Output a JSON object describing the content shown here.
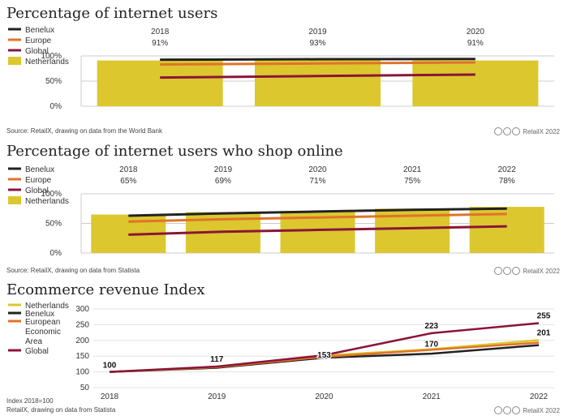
{
  "charts": [
    {
      "title": "Percentage of internet users",
      "source": "Source: RetailX, drawing on data from the World Bank",
      "credit": "RetailX 2022"
    },
    {
      "title": "Percentage of internet users who shop online",
      "source": "Source: RetailX, drawing on data from Statista",
      "credit": "RetailX 2022"
    },
    {
      "title": "Ecommerce revenue Index",
      "note": "Index 2018=100",
      "source": "RetailX, drawing on data from Statista",
      "credit": "RetailX 2022"
    }
  ],
  "colors": {
    "benelux": "#222222",
    "europe": "#e0732a",
    "global": "#8b1538",
    "netherlands": "#dcc72e",
    "grid": "#cccccc"
  },
  "chart_data": [
    {
      "type": "bar",
      "title": "Percentage of internet users",
      "categories": [
        "2018",
        "2019",
        "2020"
      ],
      "bar_labels": [
        "91%",
        "93%",
        "91%"
      ],
      "ylim": [
        0,
        100
      ],
      "yticks": [
        "0%",
        "50%",
        "100%"
      ],
      "series": [
        {
          "name": "Benelux",
          "kind": "line",
          "color": "#222222",
          "values": [
            92.5,
            93.5,
            94
          ]
        },
        {
          "name": "Europe",
          "kind": "line",
          "color": "#e0732a",
          "values": [
            83,
            85,
            87
          ]
        },
        {
          "name": "Global",
          "kind": "line",
          "color": "#8b1538",
          "values": [
            57,
            60,
            63
          ]
        },
        {
          "name": "Netherlands",
          "kind": "bar",
          "color": "#dcc72e",
          "values": [
            91,
            93,
            91
          ]
        }
      ]
    },
    {
      "type": "bar",
      "title": "Percentage of internet users who shop online",
      "categories": [
        "2018",
        "2019",
        "2020",
        "2021",
        "2022"
      ],
      "bar_labels": [
        "65%",
        "69%",
        "71%",
        "75%",
        "78%"
      ],
      "ylim": [
        0,
        100
      ],
      "yticks": [
        "0%",
        "50%",
        "100%"
      ],
      "series": [
        {
          "name": "Benelux",
          "kind": "line",
          "color": "#222222",
          "values": [
            63,
            67,
            70,
            73,
            75
          ]
        },
        {
          "name": "Europe",
          "kind": "line",
          "color": "#e0732a",
          "values": [
            53,
            57,
            60,
            63,
            66
          ]
        },
        {
          "name": "Global",
          "kind": "line",
          "color": "#8b1538",
          "values": [
            31,
            36,
            39,
            42,
            45
          ]
        },
        {
          "name": "Netherlands",
          "kind": "bar",
          "color": "#dcc72e",
          "values": [
            65,
            69,
            71,
            75,
            78
          ]
        }
      ]
    },
    {
      "type": "line",
      "title": "Ecommerce revenue Index",
      "categories": [
        "2018",
        "2019",
        "2020",
        "2021",
        "2022"
      ],
      "ylim": [
        50,
        300
      ],
      "yticks": [
        "50",
        "100",
        "150",
        "200",
        "250",
        "300"
      ],
      "series": [
        {
          "name": "Netherlands",
          "color": "#dcc72e",
          "values": [
            100,
            115,
            152,
            172,
            201
          ]
        },
        {
          "name": "Benelux",
          "color": "#222222",
          "values": [
            100,
            113,
            145,
            158,
            185
          ]
        },
        {
          "name": "European Economic Area",
          "color": "#e0732a",
          "values": [
            100,
            115,
            148,
            170,
            193
          ]
        },
        {
          "name": "Global",
          "color": "#8b1538",
          "values": [
            100,
            117,
            153,
            223,
            255
          ]
        }
      ],
      "data_labels": [
        "100",
        "117",
        "153",
        "223",
        "255",
        "170",
        "201"
      ]
    }
  ]
}
